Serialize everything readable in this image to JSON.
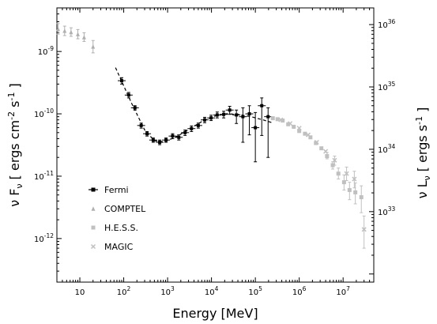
{
  "chart_data": {
    "type": "scatter",
    "xlabel": "Energy [MeV]",
    "ylabel_left": "ν F_ν [ ergs cm^-2 s^-1 ]",
    "ylabel_right": "ν L_ν [ ergs s^-1 ]",
    "x_scale": "log",
    "y_scale": "log",
    "xlim": [
      3,
      50000000
    ],
    "ylim_left": [
      2e-13,
      5e-09
    ],
    "ylim_right_approx": [
      3e+32,
      1e+36
    ],
    "x_ticks": [
      {
        "value": 10,
        "label": "10"
      },
      {
        "value": 100,
        "label": "10",
        "exp": "2"
      },
      {
        "value": 1000,
        "label": "10",
        "exp": "3"
      },
      {
        "value": 10000,
        "label": "10",
        "exp": "4"
      },
      {
        "value": 100000,
        "label": "10",
        "exp": "5"
      },
      {
        "value": 1000000,
        "label": "10",
        "exp": "6"
      },
      {
        "value": 10000000,
        "label": "10",
        "exp": "7"
      }
    ],
    "y_ticks_left": [
      {
        "value": 1e-12,
        "label": "10",
        "exp": "-12"
      },
      {
        "value": 1e-11,
        "label": "10",
        "exp": "-11"
      },
      {
        "value": 1e-10,
        "label": "10",
        "exp": "-10"
      },
      {
        "value": 1e-09,
        "label": "10",
        "exp": "-9"
      }
    ],
    "y_ticks_right": [
      {
        "frac_value": 2.7e-12,
        "label": "10",
        "exp": "33"
      },
      {
        "frac_value": 2.7e-11,
        "label": "10",
        "exp": "34"
      },
      {
        "frac_value": 2.7e-10,
        "label": "10",
        "exp": "35"
      },
      {
        "frac_value": 2.7e-09,
        "label": "10",
        "exp": "36"
      }
    ],
    "legend_placement": "lower-left",
    "series": [
      {
        "name": "Fermi",
        "marker": "square",
        "color": "#000000",
        "points": [
          {
            "x": 90,
            "y": 3.4e-10,
            "ylo": 3e-10,
            "yhi": 3.8e-10
          },
          {
            "x": 130,
            "y": 2e-10,
            "ylo": 1.8e-10,
            "yhi": 2.2e-10
          },
          {
            "x": 180,
            "y": 1.25e-10,
            "ylo": 1.15e-10,
            "yhi": 1.35e-10
          },
          {
            "x": 250,
            "y": 6.5e-11,
            "ylo": 5.9e-11,
            "yhi": 7.1e-11
          },
          {
            "x": 340,
            "y": 4.8e-11,
            "ylo": 4.4e-11,
            "yhi": 5.2e-11
          },
          {
            "x": 470,
            "y": 3.8e-11,
            "ylo": 3.5e-11,
            "yhi": 4.1e-11
          },
          {
            "x": 660,
            "y": 3.5e-11,
            "ylo": 3.2e-11,
            "yhi": 3.8e-11
          },
          {
            "x": 920,
            "y": 3.8e-11,
            "ylo": 3.5e-11,
            "yhi": 4.1e-11
          },
          {
            "x": 1300,
            "y": 4.4e-11,
            "ylo": 4e-11,
            "yhi": 4.8e-11
          },
          {
            "x": 1800,
            "y": 4.2e-11,
            "ylo": 3.8e-11,
            "yhi": 4.6e-11
          },
          {
            "x": 2500,
            "y": 5e-11,
            "ylo": 4.5e-11,
            "yhi": 5.5e-11
          },
          {
            "x": 3500,
            "y": 5.8e-11,
            "ylo": 5.2e-11,
            "yhi": 6.4e-11
          },
          {
            "x": 5000,
            "y": 6.5e-11,
            "ylo": 5.9e-11,
            "yhi": 7.1e-11
          },
          {
            "x": 7000,
            "y": 8e-11,
            "ylo": 7.2e-11,
            "yhi": 8.8e-11
          },
          {
            "x": 9800,
            "y": 8.6e-11,
            "ylo": 7.8e-11,
            "yhi": 9.5e-11
          },
          {
            "x": 13500,
            "y": 9.6e-11,
            "ylo": 8.6e-11,
            "yhi": 1.07e-10
          },
          {
            "x": 19000,
            "y": 9.8e-11,
            "ylo": 8.6e-11,
            "yhi": 1.1e-10
          },
          {
            "x": 26000,
            "y": 1.15e-10,
            "ylo": 9.8e-11,
            "yhi": 1.32e-10
          },
          {
            "x": 37000,
            "y": 9.6e-11,
            "ylo": 7e-11,
            "yhi": 1.15e-10
          },
          {
            "x": 52000,
            "y": 9e-11,
            "ylo": 3.5e-11,
            "yhi": 1.25e-10
          },
          {
            "x": 73000,
            "y": 1e-10,
            "ylo": 4.6e-11,
            "yhi": 1.35e-10
          },
          {
            "x": 100000,
            "y": 6e-11,
            "ylo": 1.7e-11,
            "yhi": 1.05e-10
          },
          {
            "x": 140000,
            "y": 1.35e-10,
            "ylo": 4.5e-11,
            "yhi": 1.8e-10
          },
          {
            "x": 195000,
            "y": 9e-11,
            "ylo": 2e-11,
            "yhi": 1.25e-10
          }
        ]
      },
      {
        "name": "COMPTEL",
        "marker": "triangle",
        "color": "#b0b0b0",
        "points": [
          {
            "x": 3.2,
            "y": 2.3e-09,
            "ylo": 1.9e-09,
            "yhi": 2.8e-09
          },
          {
            "x": 4.5,
            "y": 2.15e-09,
            "ylo": 1.8e-09,
            "yhi": 2.55e-09
          },
          {
            "x": 6.3,
            "y": 2.05e-09,
            "ylo": 1.75e-09,
            "yhi": 2.4e-09
          },
          {
            "x": 9,
            "y": 1.9e-09,
            "ylo": 1.6e-09,
            "yhi": 2.25e-09
          },
          {
            "x": 12.5,
            "y": 1.7e-09,
            "ylo": 1.45e-09,
            "yhi": 2e-09
          },
          {
            "x": 20,
            "y": 1.2e-09,
            "ylo": 9.5e-10,
            "yhi": 1.5e-09
          }
        ]
      },
      {
        "name": "H.E.S.S.",
        "marker": "square",
        "color": "#c0c0c0",
        "points": [
          {
            "x": 250000,
            "y": 8.5e-11
          },
          {
            "x": 320000,
            "y": 8.2e-11
          },
          {
            "x": 420000,
            "y": 7.8e-11
          },
          {
            "x": 560000,
            "y": 6.8e-11
          },
          {
            "x": 750000,
            "y": 6.2e-11
          },
          {
            "x": 1000000,
            "y": 5.3e-11
          },
          {
            "x": 1350000,
            "y": 4.8e-11
          },
          {
            "x": 1800000,
            "y": 4.2e-11
          },
          {
            "x": 2400000,
            "y": 3.4e-11
          },
          {
            "x": 3200000,
            "y": 2.8e-11
          },
          {
            "x": 4300000,
            "y": 2.1e-11,
            "ylo": 1.9e-11,
            "yhi": 2.4e-11
          },
          {
            "x": 5800000,
            "y": 1.5e-11,
            "ylo": 1.3e-11,
            "yhi": 1.7e-11
          },
          {
            "x": 7800000,
            "y": 1.1e-11,
            "ylo": 9e-12,
            "yhi": 1.35e-11
          },
          {
            "x": 10500000,
            "y": 8e-12,
            "ylo": 6e-12,
            "yhi": 1.05e-11
          },
          {
            "x": 14000000,
            "y": 6e-12,
            "ylo": 4.2e-12,
            "yhi": 8e-12
          },
          {
            "x": 19000000,
            "y": 5.5e-12,
            "ylo": 3.6e-12,
            "yhi": 7.8e-12
          },
          {
            "x": 26000000,
            "y": 4.6e-12,
            "ylo": 2.6e-12,
            "yhi": 7e-12
          }
        ]
      },
      {
        "name": "MAGIC",
        "marker": "cross",
        "color": "#c0c0c0",
        "points": [
          {
            "x": 380000,
            "y": 8e-11
          },
          {
            "x": 620000,
            "y": 7e-11
          },
          {
            "x": 1000000,
            "y": 5.9e-11
          },
          {
            "x": 1600000,
            "y": 4.6e-11
          },
          {
            "x": 2500000,
            "y": 3.5e-11
          },
          {
            "x": 4000000,
            "y": 2.5e-11
          },
          {
            "x": 6400000,
            "y": 1.8e-11,
            "ylo": 1.5e-11,
            "yhi": 2.1e-11
          },
          {
            "x": 12000000,
            "y": 1.1e-11,
            "ylo": 8.5e-12,
            "yhi": 1.4e-11
          },
          {
            "x": 18000000,
            "y": 9e-12,
            "ylo": 6.5e-12,
            "yhi": 1.2e-11
          },
          {
            "x": 30000000,
            "y": 1.4e-12,
            "ylo": 7e-13,
            "yhi": 2.3e-12
          }
        ]
      }
    ],
    "fit_lines": [
      {
        "style": "dashed",
        "color": "#000000",
        "points": [
          [
            65,
            5.5e-10
          ],
          [
            150,
            1.5e-10
          ],
          [
            300,
            5.5e-11
          ],
          [
            500,
            3.7e-11
          ],
          [
            800,
            3.55e-11
          ],
          [
            1500,
            4.2e-11
          ],
          [
            3000,
            5.6e-11
          ],
          [
            6000,
            7.5e-11
          ],
          [
            12000,
            9.2e-11
          ],
          [
            22000,
            1e-10
          ],
          [
            40000,
            9.8e-11
          ],
          [
            80000,
            9e-11
          ],
          [
            150000,
            8e-11
          ],
          [
            260000,
            7.1e-11
          ]
        ]
      }
    ]
  },
  "legend": {
    "entries": [
      {
        "label": "Fermi",
        "marker": "square",
        "color": "#000000",
        "has_line": true
      },
      {
        "label": "COMPTEL",
        "marker": "triangle",
        "color": "#b0b0b0"
      },
      {
        "label": "H.E.S.S.",
        "marker": "square",
        "color": "#c0c0c0"
      },
      {
        "label": "MAGIC",
        "marker": "cross",
        "color": "#c0c0c0"
      }
    ]
  }
}
